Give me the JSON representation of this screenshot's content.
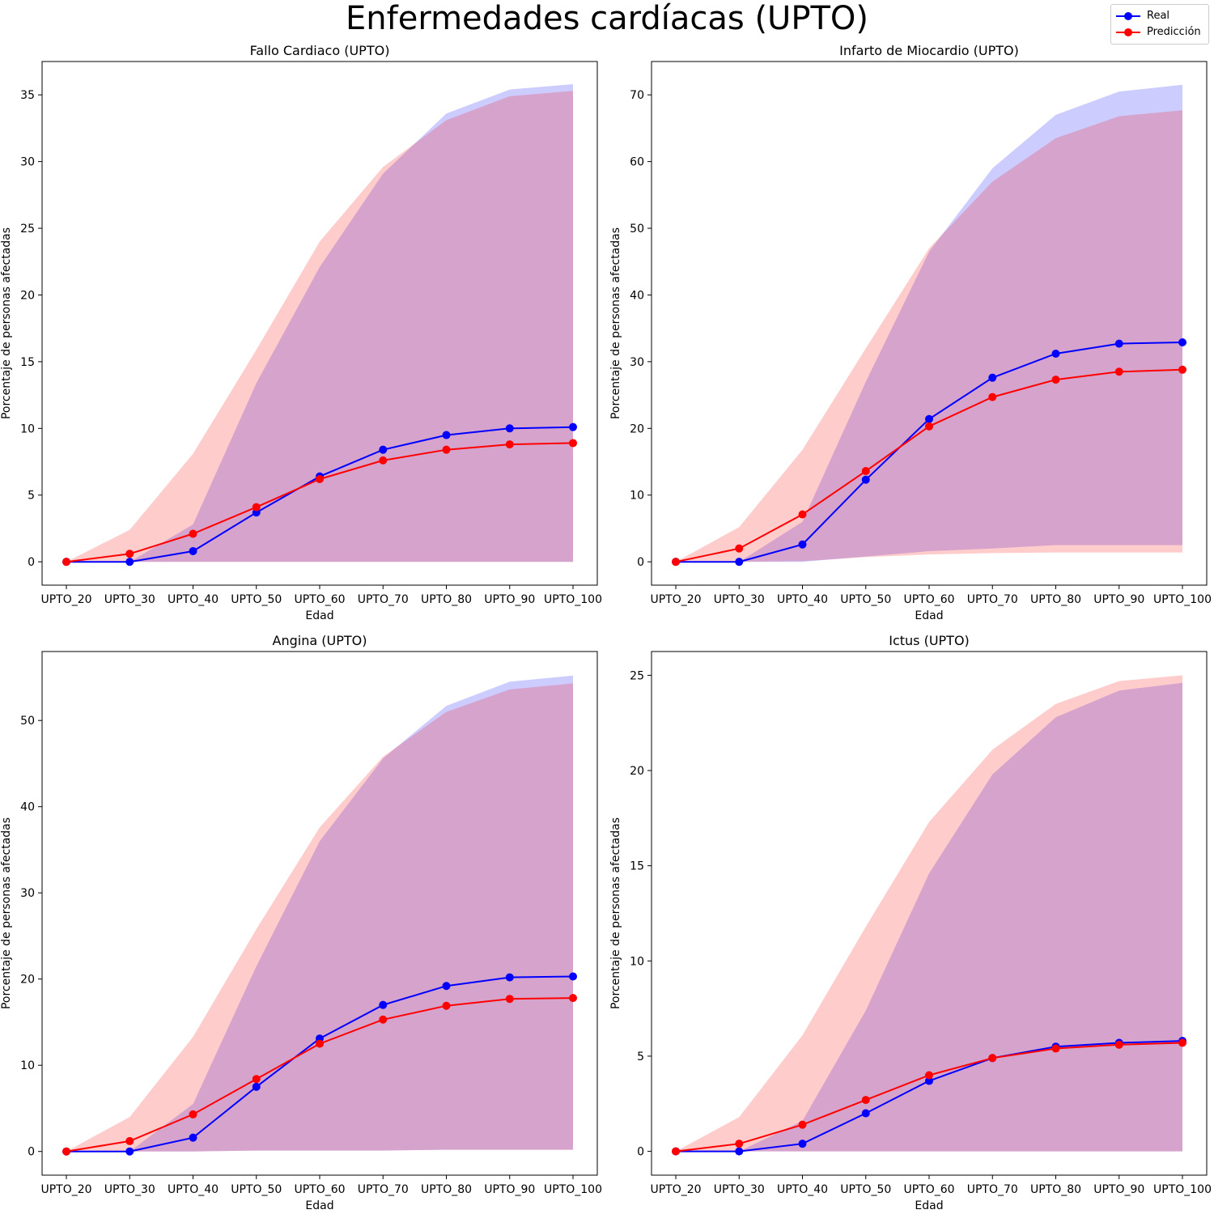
{
  "figure": {
    "title": "Enfermedades cardíacas (UPTO)",
    "legend": {
      "placement": "top-right",
      "items": [
        {
          "label": "Real",
          "color": "#0000ff"
        },
        {
          "label": "Predicción",
          "color": "#ff0000"
        }
      ]
    }
  },
  "chart_data": [
    {
      "type": "line",
      "title": "Fallo Cardiaco (UPTO)",
      "xlabel": "Edad",
      "ylabel": "Porcentaje de personas afectadas",
      "categories": [
        "UPTO_20",
        "UPTO_30",
        "UPTO_40",
        "UPTO_50",
        "UPTO_60",
        "UPTO_70",
        "UPTO_80",
        "UPTO_90",
        "UPTO_100"
      ],
      "ylim": [
        -1.75,
        37.5
      ],
      "yticks": [
        0,
        5,
        10,
        15,
        20,
        25,
        30,
        35
      ],
      "grid": false,
      "series": [
        {
          "name": "Real",
          "color": "#0000ff",
          "values": [
            0,
            0,
            0.8,
            3.7,
            6.4,
            8.4,
            9.5,
            10.0,
            10.1
          ],
          "band_low": [
            0,
            0,
            0,
            0,
            0,
            0,
            0,
            0,
            0
          ],
          "band_high": [
            0,
            0,
            2.8,
            13.4,
            22.1,
            29.1,
            33.6,
            35.4,
            35.8
          ]
        },
        {
          "name": "Predicción",
          "color": "#ff0000",
          "values": [
            0,
            0.6,
            2.1,
            4.1,
            6.2,
            7.6,
            8.4,
            8.8,
            8.9
          ],
          "band_low": [
            0,
            0,
            0,
            0,
            0,
            0,
            0,
            0,
            0
          ],
          "band_high": [
            0,
            2.4,
            8.1,
            15.9,
            24.0,
            29.6,
            33.1,
            34.9,
            35.3
          ]
        }
      ]
    },
    {
      "type": "line",
      "title": "Infarto de Miocardio (UPTO)",
      "xlabel": "Edad",
      "ylabel": "Porcentaje de personas afectadas",
      "categories": [
        "UPTO_20",
        "UPTO_30",
        "UPTO_40",
        "UPTO_50",
        "UPTO_60",
        "UPTO_70",
        "UPTO_80",
        "UPTO_90",
        "UPTO_100"
      ],
      "ylim": [
        -3.5,
        75.0
      ],
      "yticks": [
        0,
        10,
        20,
        30,
        40,
        50,
        60,
        70
      ],
      "grid": false,
      "series": [
        {
          "name": "Real",
          "color": "#0000ff",
          "values": [
            0,
            0,
            2.6,
            12.3,
            21.4,
            27.6,
            31.2,
            32.7,
            32.9
          ],
          "band_low": [
            0,
            0,
            0,
            0.8,
            1.6,
            2.0,
            2.5,
            2.5,
            2.5
          ],
          "band_high": [
            0,
            0,
            6.0,
            27.0,
            46.5,
            59.0,
            67.0,
            70.5,
            71.5
          ]
        },
        {
          "name": "Predicción",
          "color": "#ff0000",
          "values": [
            0,
            2.0,
            7.1,
            13.6,
            20.3,
            24.7,
            27.3,
            28.5,
            28.8
          ],
          "band_low": [
            0,
            0,
            0.1,
            0.7,
            1.1,
            1.3,
            1.4,
            1.4,
            1.4
          ],
          "band_high": [
            0,
            5.2,
            16.8,
            32.0,
            47.0,
            57.0,
            63.5,
            66.8,
            67.7
          ]
        }
      ]
    },
    {
      "type": "line",
      "title": "Angina (UPTO)",
      "xlabel": "Edad",
      "ylabel": "Porcentaje de personas afectadas",
      "categories": [
        "UPTO_20",
        "UPTO_30",
        "UPTO_40",
        "UPTO_50",
        "UPTO_60",
        "UPTO_70",
        "UPTO_80",
        "UPTO_90",
        "UPTO_100"
      ],
      "ylim": [
        -2.75,
        58.0
      ],
      "yticks": [
        0,
        10,
        20,
        30,
        40,
        50
      ],
      "grid": false,
      "series": [
        {
          "name": "Real",
          "color": "#0000ff",
          "values": [
            0,
            0,
            1.6,
            7.5,
            13.1,
            17.0,
            19.2,
            20.2,
            20.3
          ],
          "band_low": [
            0,
            0,
            0,
            0.1,
            0.1,
            0.1,
            0.2,
            0.2,
            0.2
          ],
          "band_high": [
            0,
            0,
            5.5,
            21.5,
            36.0,
            45.6,
            51.7,
            54.5,
            55.2
          ]
        },
        {
          "name": "Predicción",
          "color": "#ff0000",
          "values": [
            0,
            1.2,
            4.3,
            8.4,
            12.5,
            15.3,
            16.9,
            17.7,
            17.8
          ],
          "band_low": [
            0,
            0,
            0,
            0.1,
            0.1,
            0.1,
            0.2,
            0.2,
            0.2
          ],
          "band_high": [
            0,
            4.0,
            13.3,
            25.8,
            37.6,
            45.8,
            51.0,
            53.6,
            54.3
          ]
        }
      ]
    },
    {
      "type": "line",
      "title": "Ictus (UPTO)",
      "xlabel": "Edad",
      "ylabel": "Porcentaje de personas afectadas",
      "categories": [
        "UPTO_20",
        "UPTO_30",
        "UPTO_40",
        "UPTO_50",
        "UPTO_60",
        "UPTO_70",
        "UPTO_80",
        "UPTO_90",
        "UPTO_100"
      ],
      "ylim": [
        -1.25,
        26.25
      ],
      "yticks": [
        0,
        5,
        10,
        15,
        20,
        25
      ],
      "grid": false,
      "series": [
        {
          "name": "Real",
          "color": "#0000ff",
          "values": [
            0,
            0,
            0.4,
            2.0,
            3.7,
            4.9,
            5.5,
            5.7,
            5.8
          ],
          "band_low": [
            0,
            0,
            0,
            0,
            0,
            0,
            0,
            0,
            0
          ],
          "band_high": [
            0,
            0,
            1.6,
            7.4,
            14.6,
            19.8,
            22.8,
            24.2,
            24.6
          ]
        },
        {
          "name": "Predicción",
          "color": "#ff0000",
          "values": [
            0,
            0.4,
            1.4,
            2.7,
            4.0,
            4.9,
            5.4,
            5.6,
            5.7
          ],
          "band_low": [
            0,
            0,
            0,
            0,
            0,
            0,
            0,
            0,
            0
          ],
          "band_high": [
            0,
            1.8,
            6.1,
            11.8,
            17.3,
            21.1,
            23.5,
            24.7,
            25.0
          ]
        }
      ]
    }
  ]
}
